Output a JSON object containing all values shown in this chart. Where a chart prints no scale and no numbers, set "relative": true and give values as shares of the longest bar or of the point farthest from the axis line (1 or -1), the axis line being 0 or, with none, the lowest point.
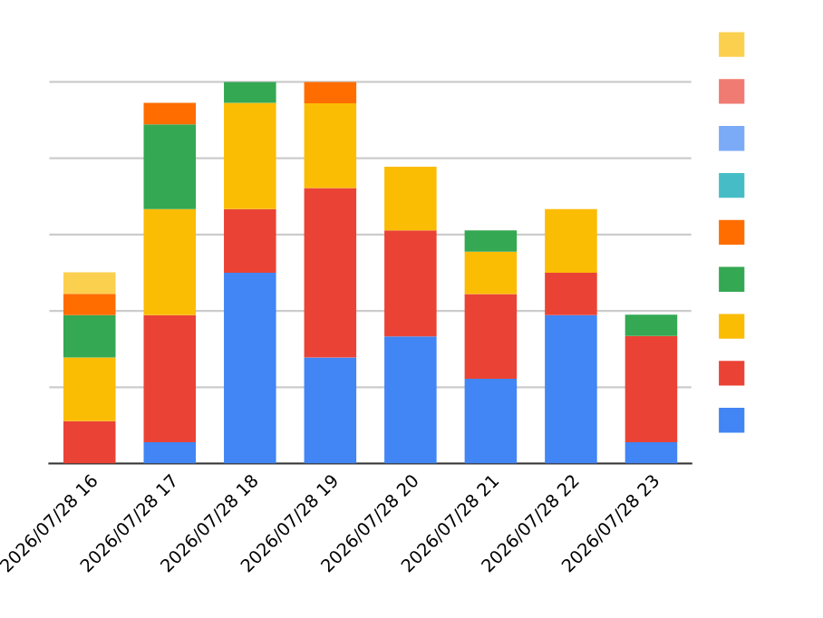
{
  "chart_data": {
    "type": "bar",
    "stacked": true,
    "relative": true,
    "grid": "y",
    "categories": [
      "2026/07/28 16",
      "2026/07/28 17",
      "2026/07/28 18",
      "2026/07/28 19",
      "2026/07/28 20",
      "2026/07/28 21",
      "2026/07/28 22",
      "2026/07/28 23"
    ],
    "series": [
      {
        "color": "#4285f4",
        "values": [
          0,
          0.056,
          0.5,
          0.278,
          0.333,
          0.222,
          0.389,
          0.056
        ]
      },
      {
        "color": "#ea4335",
        "values": [
          0.111,
          0.333,
          0.167,
          0.444,
          0.278,
          0.222,
          0.111,
          0.278
        ]
      },
      {
        "color": "#fbbc04",
        "values": [
          0.167,
          0.278,
          0.278,
          0.222,
          0.167,
          0.111,
          0.167,
          0
        ]
      },
      {
        "color": "#34a853",
        "values": [
          0.111,
          0.222,
          0.055,
          0,
          0,
          0.056,
          0,
          0.056
        ]
      },
      {
        "color": "#ff6d01",
        "values": [
          0.056,
          0.056,
          0,
          0.056,
          0,
          0,
          0,
          0
        ]
      },
      {
        "color": "#46bdc6",
        "values": [
          0,
          0,
          0,
          0,
          0,
          0,
          0,
          0
        ]
      },
      {
        "color": "#7baaf7",
        "values": [
          0,
          0,
          0,
          0,
          0,
          0,
          0,
          0
        ]
      },
      {
        "color": "#f07b72",
        "values": [
          0,
          0,
          0,
          0,
          0,
          0,
          0,
          0
        ]
      },
      {
        "color": "#fcd04f",
        "values": [
          0.056,
          0,
          0,
          0,
          0,
          0,
          0,
          0
        ]
      }
    ]
  }
}
